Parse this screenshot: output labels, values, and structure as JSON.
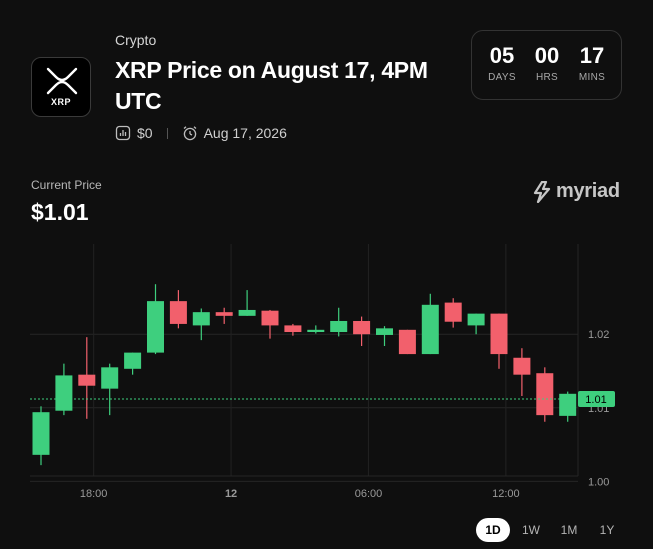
{
  "header": {
    "category": "Crypto",
    "title": "XRP Price on August 17, 4PM UTC",
    "logo_text": "XRP",
    "volume": "$0",
    "end_date": "Aug 17, 2026"
  },
  "countdown": {
    "days": "05",
    "days_label": "DAYS",
    "hrs": "00",
    "hrs_label": "HRS",
    "mins": "17",
    "mins_label": "MINS"
  },
  "price": {
    "label": "Current Price",
    "value": "$1.01"
  },
  "brand": {
    "name": "myriad"
  },
  "colors": {
    "up": "#3ecf7e",
    "down": "#f2606c",
    "bg": "#0f0f0f"
  },
  "chart_data": {
    "type": "candlestick",
    "x_ticks": [
      "18:00",
      "12",
      "06:00",
      "12:00"
    ],
    "x_tick_index": [
      2.3,
      8.3,
      14.3,
      20.3
    ],
    "y_ticks": [
      "1.02",
      "1.01",
      "1.00"
    ],
    "y_tick_values": [
      1.02,
      1.01,
      1.0
    ],
    "ylim": [
      0.9995,
      1.0305
    ],
    "current_price": 1.0112,
    "current_price_label": "1.01",
    "candles": [
      {
        "o": 1.0036,
        "c": 1.0094,
        "h": 1.0102,
        "l": 1.0022
      },
      {
        "o": 1.0096,
        "c": 1.0144,
        "h": 1.016,
        "l": 1.009
      },
      {
        "o": 1.0145,
        "c": 1.013,
        "h": 1.0196,
        "l": 1.0085
      },
      {
        "o": 1.0126,
        "c": 1.0155,
        "h": 1.016,
        "l": 1.009
      },
      {
        "o": 1.0153,
        "c": 1.0175,
        "h": 1.0175,
        "l": 1.0145
      },
      {
        "o": 1.0175,
        "c": 1.0245,
        "h": 1.0268,
        "l": 1.0173
      },
      {
        "o": 1.0245,
        "c": 1.0214,
        "h": 1.026,
        "l": 1.0208
      },
      {
        "o": 1.0212,
        "c": 1.023,
        "h": 1.0235,
        "l": 1.0192
      },
      {
        "o": 1.023,
        "c": 1.0225,
        "h": 1.0236,
        "l": 1.0214
      },
      {
        "o": 1.0225,
        "c": 1.0233,
        "h": 1.026,
        "l": 1.0225
      },
      {
        "o": 1.0232,
        "c": 1.0212,
        "h": 1.0233,
        "l": 1.0194
      },
      {
        "o": 1.0212,
        "c": 1.0203,
        "h": 1.0214,
        "l": 1.0198
      },
      {
        "o": 1.0203,
        "c": 1.0206,
        "h": 1.0212,
        "l": 1.0201
      },
      {
        "o": 1.0203,
        "c": 1.0218,
        "h": 1.0236,
        "l": 1.0197
      },
      {
        "o": 1.0218,
        "c": 1.02,
        "h": 1.0224,
        "l": 1.0184
      },
      {
        "o": 1.0199,
        "c": 1.0208,
        "h": 1.0211,
        "l": 1.0184
      },
      {
        "o": 1.0206,
        "c": 1.0173,
        "h": 1.0206,
        "l": 1.0173
      },
      {
        "o": 1.0173,
        "c": 1.024,
        "h": 1.0255,
        "l": 1.0173
      },
      {
        "o": 1.0243,
        "c": 1.0217,
        "h": 1.0249,
        "l": 1.0209
      },
      {
        "o": 1.0212,
        "c": 1.0228,
        "h": 1.0228,
        "l": 1.02
      },
      {
        "o": 1.0228,
        "c": 1.0173,
        "h": 1.0228,
        "l": 1.0153
      },
      {
        "o": 1.0168,
        "c": 1.0145,
        "h": 1.0181,
        "l": 1.0116
      },
      {
        "o": 1.0147,
        "c": 1.009,
        "h": 1.0155,
        "l": 1.0081
      },
      {
        "o": 1.0089,
        "c": 1.0119,
        "h": 1.0122,
        "l": 1.0081
      }
    ]
  },
  "ranges": [
    "1D",
    "1W",
    "1M",
    "1Y"
  ],
  "active_range": "1D"
}
